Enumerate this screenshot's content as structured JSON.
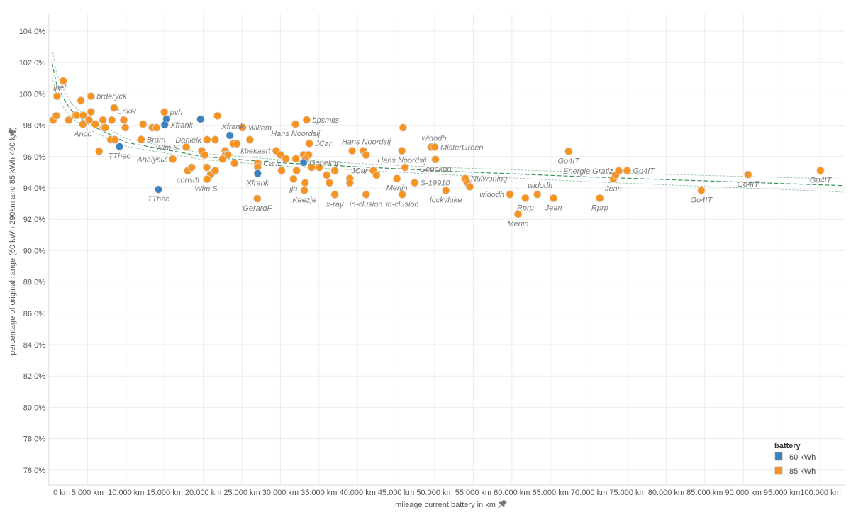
{
  "chart_data": {
    "type": "scatter",
    "title": "",
    "xlabel": "mileage current battery in km",
    "ylabel": "percentage of original range (60 kWh 290km and 85 kWh 400 km)",
    "xlim": [
      0,
      103000
    ],
    "ylim": [
      75,
      105.1
    ],
    "grid": true,
    "x_ticks": [
      {
        "v": 0,
        "label": "0 km"
      },
      {
        "v": 5000,
        "label": "5.000 km"
      },
      {
        "v": 10000,
        "label": "10.000 km"
      },
      {
        "v": 15000,
        "label": "15.000 km"
      },
      {
        "v": 20000,
        "label": "20.000 km"
      },
      {
        "v": 25000,
        "label": "25.000 km"
      },
      {
        "v": 30000,
        "label": "30.000 km"
      },
      {
        "v": 35000,
        "label": "35.000 km"
      },
      {
        "v": 40000,
        "label": "40.000 km"
      },
      {
        "v": 45000,
        "label": "45.000 km"
      },
      {
        "v": 50000,
        "label": "50.000 km"
      },
      {
        "v": 55000,
        "label": "55.000 km"
      },
      {
        "v": 60000,
        "label": "60.000 km"
      },
      {
        "v": 65000,
        "label": "65.000 km"
      },
      {
        "v": 70000,
        "label": "70.000 km"
      },
      {
        "v": 75000,
        "label": "75.000 km"
      },
      {
        "v": 80000,
        "label": "80.000 km"
      },
      {
        "v": 85000,
        "label": "85.000 km"
      },
      {
        "v": 90000,
        "label": "90.000 km"
      },
      {
        "v": 95000,
        "label": "95.000 km"
      },
      {
        "v": 100000,
        "label": "100.000 km"
      }
    ],
    "y_ticks": [
      {
        "v": 76,
        "label": "76,0%"
      },
      {
        "v": 78,
        "label": "78,0%"
      },
      {
        "v": 80,
        "label": "80,0%"
      },
      {
        "v": 82,
        "label": "82,0%"
      },
      {
        "v": 84,
        "label": "84,0%"
      },
      {
        "v": 86,
        "label": "86,0%"
      },
      {
        "v": 88,
        "label": "88,0%"
      },
      {
        "v": 90,
        "label": "90,0%"
      },
      {
        "v": 92,
        "label": "92,0%"
      },
      {
        "v": 94,
        "label": "94,0%"
      },
      {
        "v": 96,
        "label": "96,0%"
      },
      {
        "v": 98,
        "label": "98,0%"
      },
      {
        "v": 100,
        "label": "100,0%"
      },
      {
        "v": 102,
        "label": "102,0%"
      },
      {
        "v": 104,
        "label": "104,0%"
      }
    ],
    "legend": {
      "title": "battery",
      "placement": "bottom-right",
      "entries": [
        {
          "key": "60",
          "label": "60 kWh",
          "color": "#3b82bf"
        },
        {
          "key": "85",
          "label": "85 kWh",
          "color": "#f7931e"
        }
      ]
    },
    "trend": {
      "type": "logarithmic",
      "color": "#3d8f5a",
      "points": [
        [
          400,
          102.0,
          0.9
        ],
        [
          1000,
          100.6,
          0.7
        ],
        [
          2000,
          99.6,
          0.55
        ],
        [
          3000,
          98.9,
          0.45
        ],
        [
          5000,
          98.1,
          0.35
        ],
        [
          10000,
          96.9,
          0.25
        ],
        [
          20000,
          96.0,
          0.2
        ],
        [
          30000,
          95.6,
          0.2
        ],
        [
          50000,
          95.1,
          0.22
        ],
        [
          70000,
          94.7,
          0.3
        ],
        [
          100000,
          94.2,
          0.4
        ],
        [
          103000,
          94.15,
          0.42
        ]
      ]
    },
    "points": [
      [
        1850,
        100.83,
        "85",
        "",
        ""
      ],
      [
        1050,
        99.85,
        "85",
        "jpet",
        "above"
      ],
      [
        5450,
        99.85,
        "85",
        "brderyck",
        "right"
      ],
      [
        4150,
        99.58,
        "85",
        "",
        ""
      ],
      [
        8450,
        99.11,
        "85",
        "",
        ""
      ],
      [
        5450,
        98.86,
        "85",
        "",
        ""
      ],
      [
        14950,
        98.84,
        "85",
        "pvh",
        "right"
      ],
      [
        15250,
        98.4,
        "60",
        "",
        ""
      ],
      [
        15000,
        98.03,
        "60",
        "Xfrank",
        "right"
      ],
      [
        19650,
        98.39,
        "60",
        "",
        ""
      ],
      [
        21850,
        98.6,
        "85",
        "",
        ""
      ],
      [
        550,
        98.33,
        "85",
        "",
        ""
      ],
      [
        950,
        98.6,
        "85",
        "",
        ""
      ],
      [
        2550,
        98.33,
        "85",
        "",
        ""
      ],
      [
        3400,
        98.63,
        "85",
        "",
        ""
      ],
      [
        3600,
        98.63,
        "85",
        "",
        ""
      ],
      [
        4450,
        98.63,
        "85",
        "",
        ""
      ],
      [
        4400,
        98.06,
        "85",
        "Anco",
        "below"
      ],
      [
        5200,
        98.33,
        "85",
        "",
        ""
      ],
      [
        6000,
        98.07,
        "85",
        "",
        ""
      ],
      [
        7000,
        98.33,
        "85",
        "",
        ""
      ],
      [
        7100,
        97.85,
        "85",
        "",
        ""
      ],
      [
        7300,
        97.85,
        "85",
        "",
        ""
      ],
      [
        8150,
        98.33,
        "85",
        "",
        ""
      ],
      [
        9700,
        98.33,
        "85",
        "ErikR",
        "above"
      ],
      [
        9900,
        97.85,
        "85",
        "",
        ""
      ],
      [
        12200,
        98.07,
        "85",
        "",
        ""
      ],
      [
        13400,
        97.85,
        "85",
        "",
        ""
      ],
      [
        13950,
        97.85,
        "85",
        "",
        ""
      ],
      [
        8000,
        97.08,
        "85",
        "",
        ""
      ],
      [
        8550,
        97.08,
        "85",
        "",
        ""
      ],
      [
        11950,
        97.09,
        "85",
        "Bram",
        "right"
      ],
      [
        9150,
        96.64,
        "60",
        "TTheo",
        "below"
      ],
      [
        6500,
        96.34,
        "85",
        "",
        ""
      ],
      [
        17800,
        96.61,
        "85",
        "Wim S.",
        "left"
      ],
      [
        20500,
        97.08,
        "85",
        "Danielk",
        "left"
      ],
      [
        21550,
        97.08,
        "85",
        "",
        ""
      ],
      [
        23450,
        97.35,
        "60",
        "Xfrank",
        "above"
      ],
      [
        25100,
        97.85,
        "85",
        "Willem",
        "right"
      ],
      [
        26050,
        97.08,
        "85",
        "",
        ""
      ],
      [
        23900,
        96.82,
        "85",
        "",
        ""
      ],
      [
        24350,
        96.82,
        "85",
        "",
        ""
      ],
      [
        19800,
        96.37,
        "85",
        "",
        ""
      ],
      [
        20200,
        96.1,
        "85",
        "",
        ""
      ],
      [
        22850,
        96.37,
        "85",
        "",
        ""
      ],
      [
        22900,
        96.11,
        "85",
        "",
        ""
      ],
      [
        23200,
        96.11,
        "85",
        "",
        ""
      ],
      [
        22500,
        95.84,
        "85",
        "",
        ""
      ],
      [
        24050,
        95.58,
        "85",
        "",
        ""
      ],
      [
        16050,
        95.84,
        "85",
        "AnalysiZ",
        "left"
      ],
      [
        18000,
        95.1,
        "85",
        "chrisdl",
        "below"
      ],
      [
        18500,
        95.31,
        "85",
        "",
        ""
      ],
      [
        20450,
        95.31,
        "85",
        "",
        ""
      ],
      [
        20950,
        94.85,
        "85",
        "",
        ""
      ],
      [
        21550,
        95.1,
        "85",
        "",
        ""
      ],
      [
        20500,
        94.56,
        "85",
        "Wim S.",
        "below"
      ],
      [
        14200,
        93.9,
        "60",
        "TTheo",
        "below"
      ],
      [
        27050,
        95.58,
        "85",
        "CarlL",
        "right"
      ],
      [
        27050,
        95.33,
        "85",
        "",
        ""
      ],
      [
        27050,
        94.92,
        "60",
        "Xfrank",
        "below"
      ],
      [
        27000,
        93.32,
        "85",
        "GerardF",
        "below"
      ],
      [
        31950,
        98.07,
        "85",
        "Hans Noordsij",
        "below"
      ],
      [
        33400,
        98.34,
        "85",
        "bpsmits",
        "right"
      ],
      [
        29450,
        96.37,
        "85",
        "kbekaert",
        "left"
      ],
      [
        30000,
        96.11,
        "85",
        "",
        ""
      ],
      [
        30700,
        95.86,
        "85",
        "",
        ""
      ],
      [
        32000,
        95.86,
        "85",
        "",
        ""
      ],
      [
        33750,
        96.84,
        "85",
        "JCar",
        "right"
      ],
      [
        33000,
        96.11,
        "85",
        "",
        ""
      ],
      [
        33650,
        96.11,
        "85",
        "",
        ""
      ],
      [
        33250,
        95.86,
        "85",
        "",
        ""
      ],
      [
        33000,
        95.62,
        "60",
        "Gepekop",
        "right"
      ],
      [
        30150,
        95.1,
        "85",
        "",
        ""
      ],
      [
        32100,
        95.1,
        "85",
        "",
        ""
      ],
      [
        31700,
        94.57,
        "85",
        "jja",
        "below"
      ],
      [
        33200,
        94.33,
        "85",
        "",
        ""
      ],
      [
        33100,
        93.85,
        "85",
        "Keezje",
        "below"
      ],
      [
        34050,
        95.31,
        "85",
        "",
        ""
      ],
      [
        35050,
        95.31,
        "85",
        "",
        ""
      ],
      [
        36000,
        94.82,
        "85",
        "",
        ""
      ],
      [
        37050,
        95.1,
        "85",
        "",
        ""
      ],
      [
        36350,
        94.33,
        "85",
        "",
        ""
      ],
      [
        37050,
        93.58,
        "85",
        "x-ray",
        "below"
      ],
      [
        39300,
        96.37,
        "85",
        "",
        ""
      ],
      [
        39000,
        94.6,
        "85",
        "",
        ""
      ],
      [
        39000,
        94.33,
        "85",
        "",
        ""
      ],
      [
        40750,
        96.37,
        "85",
        "Hans Noordsij",
        "above"
      ],
      [
        41100,
        96.1,
        "85",
        "",
        ""
      ],
      [
        41100,
        93.58,
        "85",
        "in-clusion",
        "below"
      ],
      [
        42050,
        95.1,
        "85",
        "JCar",
        "left"
      ],
      [
        42450,
        94.82,
        "85",
        "",
        ""
      ],
      [
        45900,
        97.85,
        "85",
        "",
        ""
      ],
      [
        45750,
        96.37,
        "85",
        "Hans Noordsij",
        "below"
      ],
      [
        46150,
        95.31,
        "85",
        "",
        ""
      ],
      [
        45100,
        94.6,
        "85",
        "Merijn",
        "below"
      ],
      [
        45800,
        93.58,
        "85",
        "in-clusion",
        "below"
      ],
      [
        47400,
        94.33,
        "85",
        "S-19910",
        "right"
      ],
      [
        51450,
        93.84,
        "85",
        "luckyluke",
        "below"
      ],
      [
        49550,
        96.61,
        "85",
        "widodh",
        "above"
      ],
      [
        50000,
        96.61,
        "85",
        "MisterGreen",
        "right"
      ],
      [
        50100,
        95.82,
        "85",
        "Gepekop",
        "below"
      ],
      [
        53950,
        94.6,
        "85",
        "Nulwoning",
        "right"
      ],
      [
        54200,
        94.33,
        "85",
        "",
        ""
      ],
      [
        54550,
        94.08,
        "85",
        "",
        ""
      ],
      [
        59750,
        93.59,
        "85",
        "widodh",
        "left"
      ],
      [
        61750,
        93.35,
        "85",
        "Rprp",
        "below"
      ],
      [
        60800,
        92.33,
        "85",
        "Merijn",
        "below"
      ],
      [
        63300,
        93.59,
        "85",
        "widodh",
        "above"
      ],
      [
        65400,
        93.35,
        "85",
        "Jean",
        "below"
      ],
      [
        67350,
        96.34,
        "85",
        "Go4IT",
        "below"
      ],
      [
        71400,
        93.35,
        "85",
        "Rprp",
        "below"
      ],
      [
        73150,
        94.57,
        "85",
        "Jean",
        "below"
      ],
      [
        73450,
        94.83,
        "85",
        "",
        ""
      ],
      [
        73850,
        95.09,
        "85",
        "Energie Gratiz",
        "left"
      ],
      [
        74950,
        95.1,
        "85",
        "Go4IT",
        "right"
      ],
      [
        84550,
        93.84,
        "85",
        "Go4IT",
        "below"
      ],
      [
        90600,
        94.85,
        "85",
        "Go4IT",
        "below"
      ],
      [
        100000,
        95.1,
        "85",
        "Go4IT",
        "below"
      ]
    ]
  }
}
